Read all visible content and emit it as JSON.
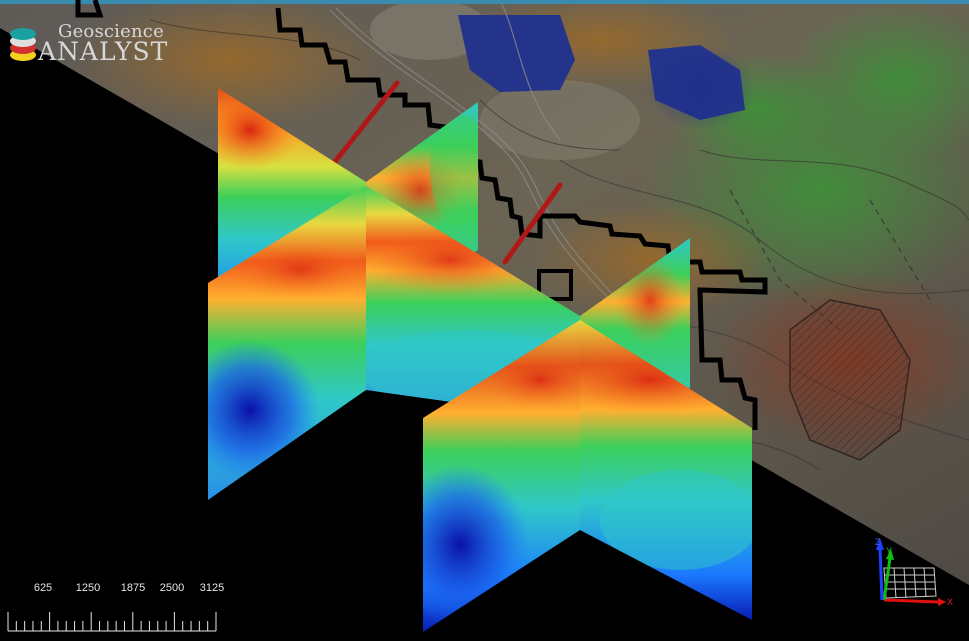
{
  "app": {
    "logo_line1": "Geoscience",
    "logo_line2": "ANALYST"
  },
  "scale_bar": {
    "labels": [
      "625",
      "1250",
      "1875",
      "2500",
      "3125"
    ]
  },
  "axis_triad": {
    "z_label": "Z",
    "y_label": "Y",
    "x_label": "X",
    "colors": {
      "x": "#e01010",
      "y": "#10c010",
      "z": "#2040ff"
    }
  },
  "scene": {
    "section_colormap": [
      "#0a1cb4",
      "#1a78ff",
      "#30d0d0",
      "#3ccf5a",
      "#d8e040",
      "#ff9a20",
      "#e0301a"
    ],
    "boundary_color": "#000000",
    "drillhole_color": "#b01818"
  }
}
